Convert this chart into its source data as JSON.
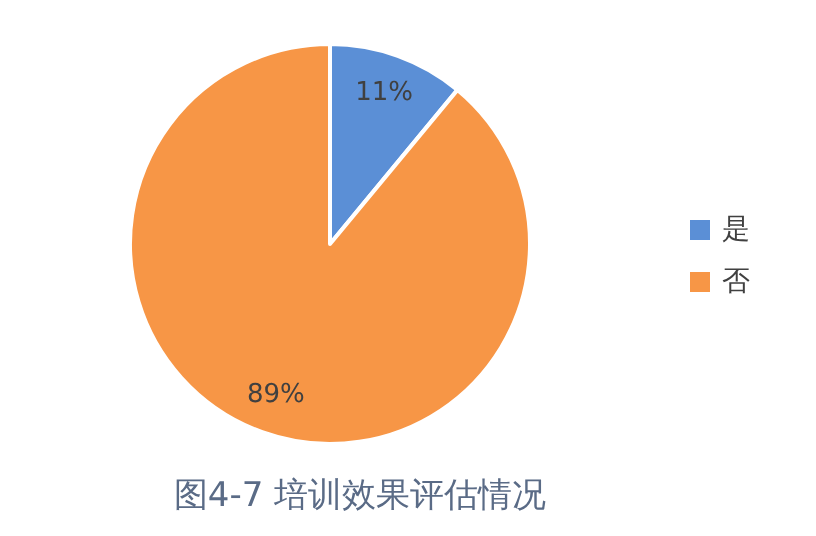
{
  "chart_data": {
    "type": "pie",
    "categories": [
      "是",
      "否"
    ],
    "values": [
      11,
      89
    ],
    "colors": [
      "#5b8fd6",
      "#f79646"
    ],
    "value_labels": [
      "11%",
      "89%"
    ],
    "legend": "right",
    "annotations": [
      "图4-7 培训效果评估情况"
    ]
  }
}
